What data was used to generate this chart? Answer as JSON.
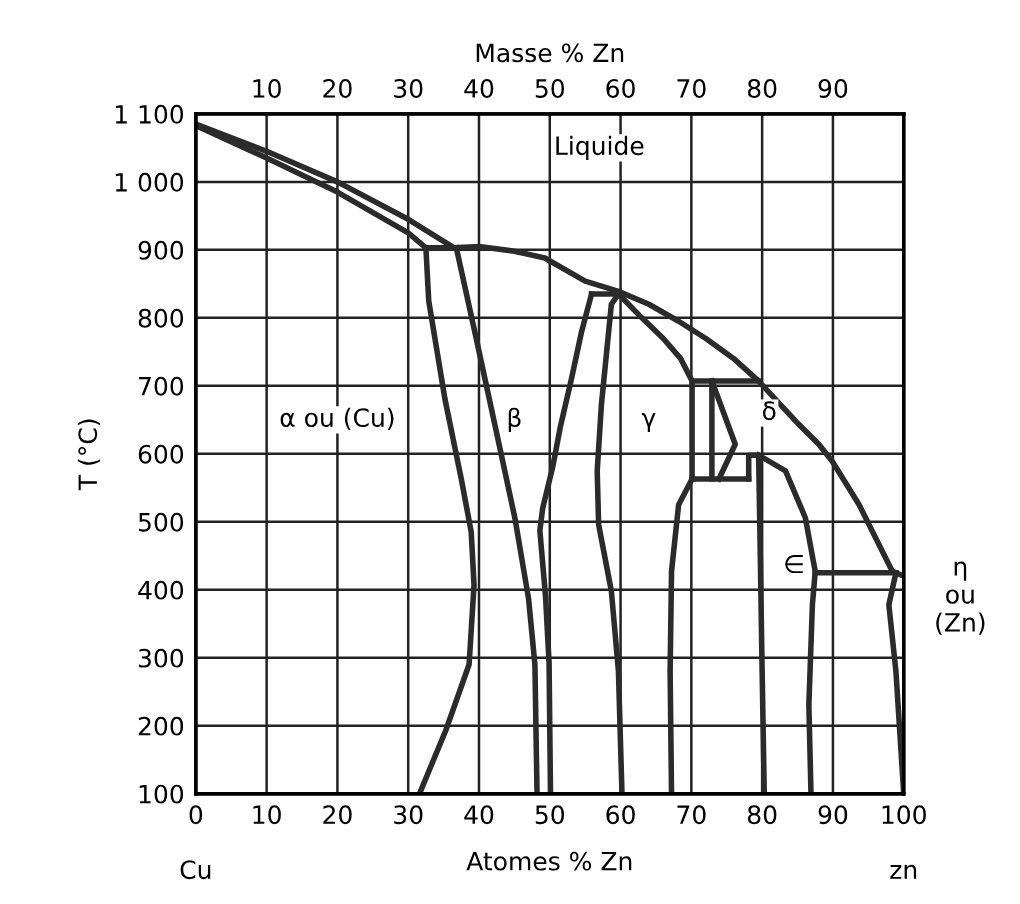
{
  "chart_data": {
    "type": "line",
    "xlabel": "Atomes % Zn",
    "x2label": "Masse % Zn",
    "ylabel": "T (°C)",
    "xlim": [
      0,
      100
    ],
    "xticks": [
      0,
      10,
      20,
      30,
      40,
      50,
      60,
      70,
      80,
      90,
      100
    ],
    "x2lim": [
      0,
      100
    ],
    "x2ticks": [
      10,
      20,
      30,
      40,
      50,
      60,
      70,
      80,
      90
    ],
    "ylim": [
      100,
      1100
    ],
    "yticks": [
      100,
      200,
      300,
      400,
      500,
      600,
      700,
      800,
      900,
      {
        "value": 1000,
        "label": "1 000"
      },
      {
        "value": 1100,
        "label": "1 100"
      }
    ],
    "grid": true,
    "legend": false,
    "marker": "none",
    "line_style": "solid",
    "series": [
      {
        "color": "#2b2b2b",
        "x": [
          0,
          10,
          20,
          30,
          36.5,
          40,
          45,
          49.3,
          55,
          59.7,
          64,
          68.2,
          72,
          76,
          79.5,
          85.2,
          88,
          89.9,
          93.7,
          98.4,
          100
        ],
        "values": [
          1085,
          1045,
          1000,
          945,
          903,
          905,
          898,
          888,
          854,
          839,
          820,
          795,
          770,
          740,
          707,
          643,
          614,
          589,
          525,
          427,
          420
        ]
      },
      {
        "color": "#2b2b2b",
        "x": [
          0,
          10,
          20,
          30,
          32.5
        ],
        "values": [
          1083,
          1035,
          985,
          925,
          903
        ]
      },
      {
        "color": "#2b2b2b",
        "x": [
          32.5,
          36.8
        ],
        "values": [
          903,
          903
        ]
      },
      {
        "color": "#2b2b2b",
        "x": [
          32.5,
          32.9,
          35.2,
          37.5,
          38.9,
          39.3,
          38.6,
          35.3,
          31.6
        ],
        "values": [
          903,
          825,
          680,
          563,
          485,
          407,
          290,
          193,
          100
        ]
      },
      {
        "color": "#2b2b2b",
        "x": [
          36.8,
          39.5,
          42.3,
          45.1,
          47,
          47.9,
          48.2
        ],
        "values": [
          903,
          775,
          640,
          504,
          387,
          290,
          100
        ]
      },
      {
        "color": "#2b2b2b",
        "x": [
          55.9,
          54.5,
          53.1,
          51.5,
          50.4,
          49,
          48.6,
          49.4,
          49.9,
          50.1
        ],
        "values": [
          835,
          780,
          712,
          640,
          580,
          520,
          487,
          390,
          293,
          100
        ]
      },
      {
        "color": "#2b2b2b",
        "x": [
          55.9,
          59.7
        ],
        "values": [
          835,
          835
        ]
      },
      {
        "color": "#2b2b2b",
        "x": [
          59.7,
          58.7,
          57.3,
          56.7,
          56.9,
          58.7,
          59.7,
          60.2
        ],
        "values": [
          835,
          820,
          673,
          575,
          496,
          398,
          280,
          100
        ]
      },
      {
        "color": "#2b2b2b",
        "x": [
          59.7,
          63,
          66,
          68.5,
          70.1,
          70.1
        ],
        "values": [
          835,
          800,
          770,
          740,
          707,
          563
        ]
      },
      {
        "color": "#2b2b2b",
        "x": [
          70.1,
          79.5
        ],
        "values": [
          707,
          707
        ]
      },
      {
        "color": "#2b2b2b",
        "x": [
          72.9,
          76.2,
          73.9
        ],
        "values": [
          707,
          614,
          563
        ]
      },
      {
        "color": "#2b2b2b",
        "x": [
          72.9,
          72.9
        ],
        "values": [
          707,
          563
        ]
      },
      {
        "color": "#2b2b2b",
        "x": [
          70.1,
          78.1
        ],
        "values": [
          563,
          563
        ]
      },
      {
        "color": "#2b2b2b",
        "x": [
          70.1,
          68.2,
          67.2,
          67,
          67.2
        ],
        "values": [
          563,
          525,
          427,
          280,
          100
        ]
      },
      {
        "color": "#2b2b2b",
        "x": [
          78.1,
          78.1,
          79.5,
          79.7,
          80,
          80.3
        ],
        "values": [
          563,
          598,
          598,
          476,
          280,
          100
        ]
      },
      {
        "color": "#2b2b2b",
        "x": [
          79.5,
          83.3,
          86.1,
          87.5,
          87.1,
          86.6,
          86.9
        ],
        "values": [
          598,
          575,
          506,
          427,
          378,
          231,
          100
        ]
      },
      {
        "color": "#2b2b2b",
        "x": [
          87.5,
          98.9
        ],
        "values": [
          425,
          425
        ]
      },
      {
        "color": "#2b2b2b",
        "x": [
          98.9,
          97.9,
          98.9,
          100
        ],
        "values": [
          425,
          378,
          280,
          100
        ]
      }
    ],
    "annotations": [
      "Liquide",
      "α ou (Cu)",
      "β",
      "γ",
      "δ",
      "∈",
      "η\nou\n(Zn)",
      "Cu",
      "zn"
    ]
  }
}
